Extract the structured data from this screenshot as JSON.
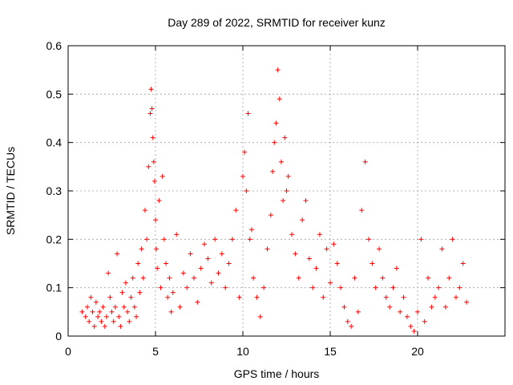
{
  "chart_data": {
    "type": "scatter",
    "title": "Day 289 of 2022, SRMTID for receiver kunz",
    "xlabel": "GPS time / hours",
    "ylabel": "SRMTID / TECUs",
    "xlim": [
      0,
      25
    ],
    "ylim": [
      0,
      0.6
    ],
    "xticks": [
      0,
      5,
      10,
      15,
      20
    ],
    "xtick_labels": [
      "0",
      "5",
      "10",
      "15",
      "20"
    ],
    "yticks": [
      0,
      0.1,
      0.2,
      0.3,
      0.4,
      0.5,
      0.6
    ],
    "ytick_labels": [
      "0",
      "0.1",
      "0.2",
      "0.3",
      "0.4",
      "0.5",
      "0.6"
    ],
    "grid": true,
    "marker": "plus",
    "color": "#ff0000",
    "series": [
      {
        "name": "SRMTID",
        "x": [
          0.8,
          1.0,
          1.1,
          1.2,
          1.3,
          1.4,
          1.5,
          1.6,
          1.7,
          1.8,
          1.9,
          2.0,
          2.1,
          2.2,
          2.3,
          2.4,
          2.5,
          2.6,
          2.7,
          2.8,
          2.9,
          3.0,
          3.1,
          3.2,
          3.3,
          3.4,
          3.5,
          3.6,
          3.7,
          3.8,
          3.9,
          4.0,
          4.1,
          4.2,
          4.3,
          4.4,
          4.5,
          4.6,
          4.7,
          4.75,
          4.8,
          4.85,
          4.9,
          4.95,
          5.0,
          5.05,
          5.1,
          5.2,
          5.3,
          5.4,
          5.5,
          5.6,
          5.7,
          5.8,
          5.9,
          6.0,
          6.2,
          6.4,
          6.6,
          6.8,
          7.0,
          7.2,
          7.4,
          7.6,
          7.8,
          8.0,
          8.2,
          8.4,
          8.6,
          8.8,
          9.0,
          9.2,
          9.4,
          9.6,
          9.8,
          10.0,
          10.1,
          10.2,
          10.3,
          10.4,
          10.5,
          10.6,
          10.8,
          11.0,
          11.2,
          11.4,
          11.6,
          11.7,
          11.8,
          11.9,
          12.0,
          12.1,
          12.2,
          12.3,
          12.4,
          12.5,
          12.6,
          12.8,
          13.0,
          13.2,
          13.4,
          13.6,
          13.8,
          14.0,
          14.2,
          14.4,
          14.6,
          14.8,
          15.0,
          15.2,
          15.4,
          15.6,
          15.8,
          16.0,
          16.2,
          16.4,
          16.6,
          16.8,
          17.0,
          17.2,
          17.4,
          17.6,
          17.8,
          18.0,
          18.2,
          18.4,
          18.6,
          18.8,
          19.0,
          19.2,
          19.4,
          19.6,
          19.8,
          20.0,
          20.2,
          20.4,
          20.6,
          20.8,
          21.0,
          21.2,
          21.4,
          21.6,
          21.8,
          22.0,
          22.2,
          22.4,
          22.6,
          22.8
        ],
        "y": [
          0.05,
          0.04,
          0.06,
          0.03,
          0.08,
          0.05,
          0.02,
          0.07,
          0.04,
          0.05,
          0.03,
          0.06,
          0.02,
          0.04,
          0.13,
          0.08,
          0.05,
          0.03,
          0.06,
          0.17,
          0.04,
          0.02,
          0.09,
          0.06,
          0.11,
          0.05,
          0.03,
          0.08,
          0.12,
          0.06,
          0.04,
          0.15,
          0.09,
          0.18,
          0.12,
          0.26,
          0.2,
          0.35,
          0.46,
          0.51,
          0.47,
          0.41,
          0.36,
          0.32,
          0.24,
          0.18,
          0.14,
          0.28,
          0.1,
          0.33,
          0.2,
          0.15,
          0.08,
          0.12,
          0.05,
          0.09,
          0.21,
          0.06,
          0.13,
          0.1,
          0.17,
          0.12,
          0.07,
          0.14,
          0.19,
          0.16,
          0.11,
          0.2,
          0.13,
          0.17,
          0.1,
          0.15,
          0.2,
          0.26,
          0.08,
          0.33,
          0.38,
          0.3,
          0.46,
          0.2,
          0.22,
          0.12,
          0.08,
          0.04,
          0.1,
          0.18,
          0.25,
          0.34,
          0.4,
          0.44,
          0.55,
          0.49,
          0.36,
          0.28,
          0.41,
          0.3,
          0.33,
          0.21,
          0.17,
          0.12,
          0.24,
          0.28,
          0.16,
          0.1,
          0.14,
          0.21,
          0.08,
          0.18,
          0.11,
          0.19,
          0.15,
          0.1,
          0.06,
          0.03,
          0.02,
          0.12,
          0.05,
          0.26,
          0.36,
          0.2,
          0.15,
          0.1,
          0.18,
          0.12,
          0.08,
          0.06,
          0.1,
          0.14,
          0.05,
          0.08,
          0.04,
          0.02,
          0.01,
          0.05,
          0.2,
          0.03,
          0.12,
          0.06,
          0.08,
          0.1,
          0.18,
          0.06,
          0.12,
          0.2,
          0.08,
          0.1,
          0.15,
          0.07
        ]
      }
    ]
  }
}
